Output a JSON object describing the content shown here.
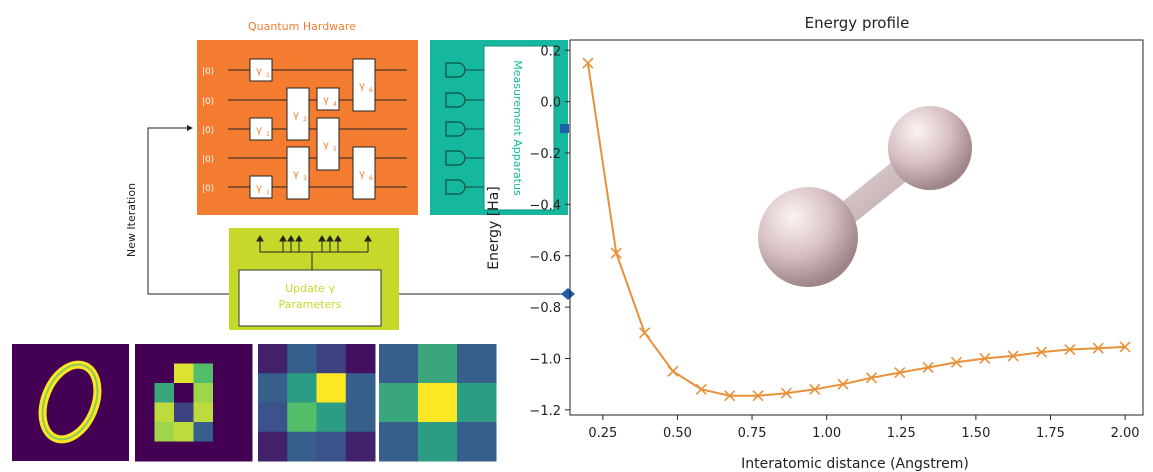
{
  "circuit": {
    "title": "Quantum Hardware",
    "qubit_label": "|0⟩",
    "gate_label": "γ",
    "gates": [
      {
        "sub": "1"
      },
      {
        "sub": "1"
      },
      {
        "sub": "1"
      },
      {
        "sub": "2"
      },
      {
        "sub": "3"
      },
      {
        "sub": "4"
      },
      {
        "sub": "5"
      },
      {
        "sub": "6"
      },
      {
        "sub": "6"
      }
    ],
    "measurement_label": "Measurement Apparatus",
    "update_label_line1": "Update γ",
    "update_label_line2": "Parameters",
    "iteration_label": "New Iteration",
    "colors": {
      "hardware": "#f47c30",
      "measurement": "#16b79f",
      "update": "#c6d92b"
    }
  },
  "digits": {
    "description": "handwritten zero",
    "colormap": "viridis",
    "grids": [
      {
        "size": 6,
        "cells": [
          [
            0,
            0,
            0,
            0,
            0,
            0
          ],
          [
            0,
            0,
            0.95,
            0.7,
            0,
            0
          ],
          [
            0,
            0.6,
            0,
            0.85,
            0,
            0
          ],
          [
            0,
            0.9,
            0.2,
            0.9,
            0,
            0
          ],
          [
            0,
            0.85,
            0.9,
            0.3,
            0,
            0
          ],
          [
            0,
            0,
            0,
            0,
            0,
            0
          ]
        ]
      },
      {
        "size": 4,
        "cells": [
          [
            0.1,
            0.3,
            0.2,
            0.05
          ],
          [
            0.3,
            0.55,
            1.0,
            0.3
          ],
          [
            0.25,
            0.7,
            0.55,
            0.3
          ],
          [
            0.1,
            0.3,
            0.25,
            0.1
          ]
        ]
      },
      {
        "size": 3,
        "cells": [
          [
            0.3,
            0.6,
            0.3
          ],
          [
            0.6,
            1.0,
            0.55
          ],
          [
            0.3,
            0.55,
            0.3
          ]
        ]
      }
    ]
  },
  "chart_data": {
    "type": "line",
    "title": "Energy profile",
    "xlabel": "Interatomic distance (Angstrem)",
    "ylabel": "Energy [Ha]",
    "x": [
      0.2,
      0.295,
      0.39,
      0.485,
      0.58,
      0.675,
      0.77,
      0.865,
      0.96,
      1.055,
      1.15,
      1.245,
      1.34,
      1.435,
      1.53,
      1.625,
      1.72,
      1.815,
      1.91,
      2.0
    ],
    "y": [
      0.15,
      -0.59,
      -0.9,
      -1.05,
      -1.12,
      -1.145,
      -1.145,
      -1.135,
      -1.12,
      -1.1,
      -1.075,
      -1.055,
      -1.035,
      -1.015,
      -1.0,
      -0.99,
      -0.975,
      -0.965,
      -0.96,
      -0.955
    ],
    "xlim": [
      0.14,
      2.06
    ],
    "ylim": [
      -1.22,
      0.24
    ],
    "xticks": [
      0.25,
      0.5,
      0.75,
      1.0,
      1.25,
      1.5,
      1.75,
      2.0
    ],
    "xtick_labels": [
      "0.25",
      "0.50",
      "0.75",
      "1.00",
      "1.25",
      "1.50",
      "1.75",
      "2.00"
    ],
    "yticks": [
      0.2,
      0.0,
      -0.2,
      -0.4,
      -0.6,
      -0.8,
      -1.0,
      -1.2
    ],
    "ytick_labels": [
      "0.2",
      "0.0",
      "−0.2",
      "−0.4",
      "−0.6",
      "−0.8",
      "−1.0",
      "−1.2"
    ],
    "grid": false,
    "marker": "x",
    "line_color": "#e8913a",
    "molecule": "H2"
  }
}
